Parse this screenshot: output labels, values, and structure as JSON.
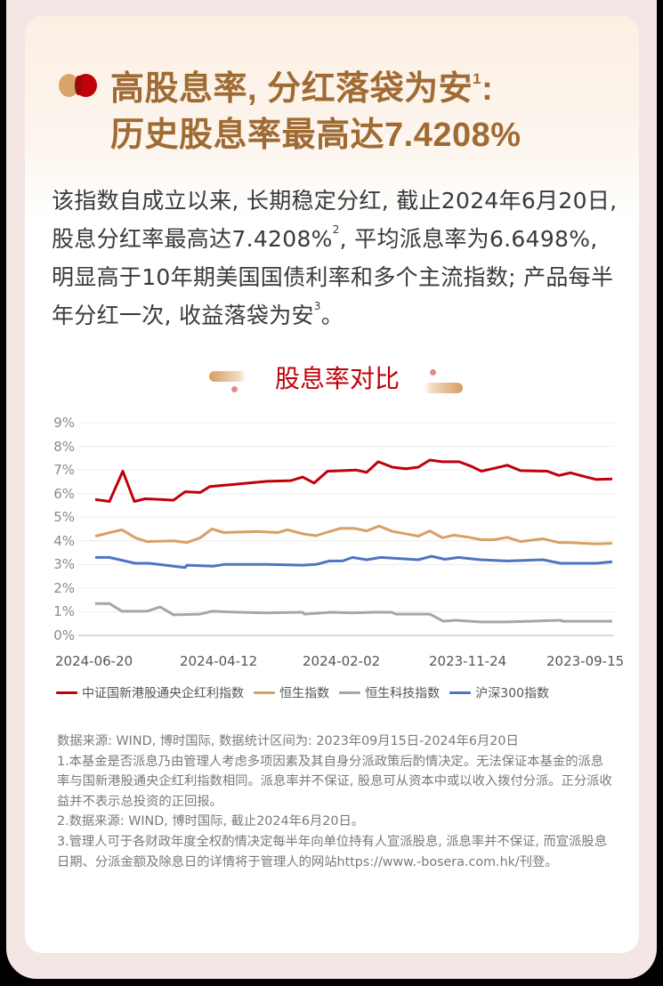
{
  "colors": {
    "frame": "#f4e6e5",
    "title": "#a06b33",
    "accent_red": "#c0000b",
    "accent_tan": "#d9a46c",
    "text": "#3a3a3a",
    "note": "#7a7a7a"
  },
  "header": {
    "bullet_icon": "two-overlapping-dots-icon",
    "title_line1": "高股息率, 分红落袋为安",
    "title_line1_sup": "1",
    "title_line1_suffix": ":",
    "title_line2": "历史股息率最高达7.4208%"
  },
  "intro": {
    "part1": "该指数自成立以来, 长期稳定分红, 截止2024年6月20日, 股息分红率最高达7.4208%",
    "sup1": "2",
    "part2": ", 平均派息率为6.6498%, 明显高于10年期美国国债利率和多个主流指数; 产品每半年分红一次, 收益落袋为安",
    "sup2": "3",
    "part3": "。"
  },
  "chart_heading": "股息率对比",
  "chart_data": {
    "type": "line",
    "title": "股息率对比",
    "xlabel": "",
    "ylabel": "",
    "ylim": [
      0,
      9
    ],
    "yticks": [
      "0%",
      "1%",
      "2%",
      "3%",
      "4%",
      "5%",
      "6%",
      "7%",
      "8%",
      "9%"
    ],
    "xticks": [
      "2024-06-20",
      "2024-04-12",
      "2024-02-02",
      "2023-11-24",
      "2023-09-15"
    ],
    "x_direction": "newest on the left, oldest on the right",
    "grid": true,
    "legend_position": "bottom",
    "series": [
      {
        "name": "中证国新港股通央企红利指数",
        "color": "#c0000b",
        "points": [
          [
            107,
            5.75
          ],
          [
            123,
            5.67
          ],
          [
            138,
            6.95
          ],
          [
            151,
            5.67
          ],
          [
            163,
            5.78
          ],
          [
            180,
            5.75
          ],
          [
            195,
            5.72
          ],
          [
            208,
            6.08
          ],
          [
            225,
            6.05
          ],
          [
            236,
            6.3
          ],
          [
            260,
            6.38
          ],
          [
            285,
            6.47
          ],
          [
            300,
            6.52
          ],
          [
            327,
            6.55
          ],
          [
            340,
            6.7
          ],
          [
            353,
            6.45
          ],
          [
            368,
            6.95
          ],
          [
            385,
            6.97
          ],
          [
            400,
            7.0
          ],
          [
            412,
            6.9
          ],
          [
            425,
            7.35
          ],
          [
            441,
            7.12
          ],
          [
            456,
            7.05
          ],
          [
            470,
            7.12
          ],
          [
            483,
            7.42
          ],
          [
            497,
            7.35
          ],
          [
            516,
            7.35
          ],
          [
            530,
            7.15
          ],
          [
            541,
            6.95
          ],
          [
            555,
            7.07
          ],
          [
            570,
            7.2
          ],
          [
            585,
            6.97
          ],
          [
            615,
            6.95
          ],
          [
            628,
            6.77
          ],
          [
            641,
            6.88
          ],
          [
            656,
            6.73
          ],
          [
            670,
            6.6
          ],
          [
            688,
            6.62
          ]
        ]
      },
      {
        "name": "恒生指数",
        "color": "#d9a063",
        "points": [
          [
            107,
            4.2
          ],
          [
            137,
            4.47
          ],
          [
            152,
            4.13
          ],
          [
            165,
            3.97
          ],
          [
            195,
            4.0
          ],
          [
            210,
            3.93
          ],
          [
            225,
            4.13
          ],
          [
            238,
            4.5
          ],
          [
            252,
            4.35
          ],
          [
            290,
            4.4
          ],
          [
            312,
            4.35
          ],
          [
            323,
            4.47
          ],
          [
            340,
            4.3
          ],
          [
            355,
            4.22
          ],
          [
            368,
            4.37
          ],
          [
            383,
            4.53
          ],
          [
            398,
            4.53
          ],
          [
            412,
            4.42
          ],
          [
            426,
            4.63
          ],
          [
            441,
            4.4
          ],
          [
            456,
            4.3
          ],
          [
            470,
            4.2
          ],
          [
            483,
            4.42
          ],
          [
            497,
            4.13
          ],
          [
            510,
            4.24
          ],
          [
            527,
            4.15
          ],
          [
            541,
            4.05
          ],
          [
            555,
            4.05
          ],
          [
            570,
            4.15
          ],
          [
            585,
            3.97
          ],
          [
            610,
            4.09
          ],
          [
            628,
            3.93
          ],
          [
            641,
            3.93
          ],
          [
            670,
            3.87
          ],
          [
            688,
            3.9
          ]
        ]
      },
      {
        "name": "恒生科技指数",
        "color": "#a6a6a6",
        "points": [
          [
            107,
            1.35
          ],
          [
            123,
            1.35
          ],
          [
            137,
            1.02
          ],
          [
            165,
            1.02
          ],
          [
            180,
            1.2
          ],
          [
            195,
            0.87
          ],
          [
            225,
            0.9
          ],
          [
            238,
            1.02
          ],
          [
            270,
            0.98
          ],
          [
            297,
            0.95
          ],
          [
            340,
            0.98
          ],
          [
            342,
            0.9
          ],
          [
            373,
            0.98
          ],
          [
            396,
            0.95
          ],
          [
            420,
            0.98
          ],
          [
            440,
            0.98
          ],
          [
            445,
            0.9
          ],
          [
            483,
            0.9
          ],
          [
            498,
            0.6
          ],
          [
            512,
            0.64
          ],
          [
            540,
            0.57
          ],
          [
            570,
            0.57
          ],
          [
            595,
            0.6
          ],
          [
            630,
            0.64
          ],
          [
            632,
            0.6
          ],
          [
            688,
            0.6
          ]
        ]
      },
      {
        "name": "沪深300指数",
        "color": "#4f74c2",
        "points": [
          [
            107,
            3.3
          ],
          [
            123,
            3.3
          ],
          [
            152,
            3.05
          ],
          [
            168,
            3.05
          ],
          [
            195,
            2.93
          ],
          [
            208,
            2.87
          ],
          [
            210,
            2.97
          ],
          [
            240,
            2.93
          ],
          [
            252,
            3.0
          ],
          [
            300,
            3.0
          ],
          [
            340,
            2.97
          ],
          [
            355,
            3.0
          ],
          [
            370,
            3.15
          ],
          [
            385,
            3.15
          ],
          [
            396,
            3.3
          ],
          [
            412,
            3.2
          ],
          [
            428,
            3.3
          ],
          [
            470,
            3.2
          ],
          [
            485,
            3.35
          ],
          [
            500,
            3.22
          ],
          [
            515,
            3.3
          ],
          [
            540,
            3.2
          ],
          [
            570,
            3.15
          ],
          [
            610,
            3.2
          ],
          [
            630,
            3.05
          ],
          [
            670,
            3.05
          ],
          [
            688,
            3.12
          ]
        ]
      }
    ]
  },
  "legend": [
    {
      "label": "中证国新港股通央企红利指数",
      "color": "#c0000b"
    },
    {
      "label": "恒生指数",
      "color": "#d9a063"
    },
    {
      "label": "恒生科技指数",
      "color": "#a6a6a6"
    },
    {
      "label": "沪深300指数",
      "color": "#4f74c2"
    }
  ],
  "notes": [
    "数据来源: WIND, 博时国际, 数据统计区间为: 2023年09月15日-2024年6月20日",
    "1.本基金是否派息乃由管理人考虑多项因素及其自身分派政策后酌情决定。无法保证本基金的派息率与国新港股通央企红利指数相同。派息率并不保证, 股息可从资本中或以收入拨付分派。正分派收益并不表示总投资的正回报。",
    "2.数据来源: WIND, 博时国际, 截止2024年6月20日。",
    "3.管理人可于各财政年度全权酌情决定每半年向单位持有人宣派股息, 派息率并不保证, 而宣派股息日期、分派金额及除息日的详情将于管理人的网站https://www.-bosera.com.hk/刊登。"
  ]
}
